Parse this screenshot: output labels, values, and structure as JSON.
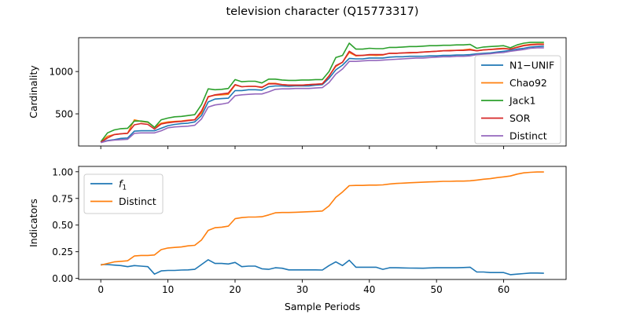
{
  "figure": {
    "suptitle": "television character (Q15773317)"
  },
  "chart_data": [
    {
      "type": "line",
      "title": "",
      "xlabel": "",
      "ylabel": "Cardinality",
      "xlim": [
        -3.3,
        69.3
      ],
      "ylim": [
        120,
        1400
      ],
      "x_ticks": [
        0,
        10,
        20,
        30,
        40,
        50,
        60
      ],
      "x_tick_labels_shown": false,
      "y_ticks": [
        500,
        1000
      ],
      "y_tick_labels": [
        "500",
        "1000"
      ],
      "grid": false,
      "legend": "right",
      "series": [
        {
          "name": "N1−UNIF",
          "color": "#1f77b4",
          "x": [
            0,
            1,
            2,
            3,
            4,
            5,
            6,
            7,
            8,
            9,
            10,
            11,
            12,
            13,
            14,
            15,
            16,
            17,
            18,
            19,
            20,
            21,
            22,
            23,
            24,
            25,
            26,
            27,
            28,
            29,
            30,
            31,
            32,
            33,
            34,
            35,
            36,
            37,
            38,
            39,
            40,
            41,
            42,
            43,
            44,
            45,
            46,
            47,
            48,
            49,
            50,
            51,
            52,
            53,
            54,
            55,
            56,
            57,
            58,
            59,
            60,
            61,
            62,
            63,
            64,
            65,
            66
          ],
          "values": [
            165,
            185,
            195,
            210,
            215,
            295,
            300,
            300,
            300,
            330,
            360,
            375,
            385,
            390,
            405,
            480,
            640,
            675,
            680,
            685,
            775,
            775,
            785,
            785,
            780,
            820,
            830,
            830,
            825,
            830,
            830,
            830,
            840,
            845,
            920,
            1020,
            1075,
            1155,
            1150,
            1150,
            1160,
            1160,
            1160,
            1170,
            1175,
            1175,
            1180,
            1180,
            1180,
            1185,
            1185,
            1190,
            1190,
            1195,
            1195,
            1200,
            1210,
            1215,
            1220,
            1230,
            1240,
            1250,
            1265,
            1275,
            1290,
            1295,
            1300
          ]
        },
        {
          "name": "Chao92",
          "color": "#ff7f0e",
          "x": [
            0,
            1,
            2,
            3,
            4,
            5,
            6,
            7,
            8,
            9,
            10,
            11,
            12,
            13,
            14,
            15,
            16,
            17,
            18,
            19,
            20,
            21,
            22,
            23,
            24,
            25,
            26,
            27,
            28,
            29,
            30,
            31,
            32,
            33,
            34,
            35,
            36,
            37,
            38,
            39,
            40,
            41,
            42,
            43,
            44,
            45,
            46,
            47,
            48,
            49,
            50,
            51,
            52,
            53,
            54,
            55,
            56,
            57,
            58,
            59,
            60,
            61,
            62,
            63,
            64,
            65,
            66
          ],
          "values": [
            165,
            235,
            255,
            265,
            270,
            430,
            410,
            400,
            340,
            390,
            405,
            410,
            415,
            425,
            430,
            510,
            705,
            720,
            725,
            730,
            840,
            820,
            825,
            825,
            810,
            860,
            860,
            845,
            840,
            840,
            840,
            845,
            850,
            855,
            950,
            1060,
            1110,
            1225,
            1185,
            1190,
            1195,
            1190,
            1195,
            1215,
            1215,
            1220,
            1220,
            1225,
            1230,
            1235,
            1240,
            1245,
            1250,
            1250,
            1255,
            1265,
            1245,
            1255,
            1260,
            1270,
            1275,
            1265,
            1290,
            1310,
            1320,
            1325,
            1325
          ]
        },
        {
          "name": "Jack1",
          "color": "#2ca02c",
          "x": [
            0,
            1,
            2,
            3,
            4,
            5,
            6,
            7,
            8,
            9,
            10,
            11,
            12,
            13,
            14,
            15,
            16,
            17,
            18,
            19,
            20,
            21,
            22,
            23,
            24,
            25,
            26,
            27,
            28,
            29,
            30,
            31,
            32,
            33,
            34,
            35,
            36,
            37,
            38,
            39,
            40,
            41,
            42,
            43,
            44,
            45,
            46,
            47,
            48,
            49,
            50,
            51,
            52,
            53,
            54,
            55,
            56,
            57,
            58,
            59,
            60,
            61,
            62,
            63,
            64,
            65,
            66
          ],
          "values": [
            170,
            275,
            310,
            325,
            330,
            415,
            415,
            405,
            340,
            430,
            450,
            465,
            470,
            480,
            490,
            610,
            795,
            785,
            790,
            800,
            905,
            880,
            885,
            885,
            865,
            910,
            910,
            900,
            895,
            895,
            900,
            900,
            905,
            905,
            1000,
            1165,
            1190,
            1335,
            1265,
            1265,
            1275,
            1270,
            1270,
            1285,
            1285,
            1290,
            1295,
            1295,
            1300,
            1305,
            1305,
            1310,
            1310,
            1315,
            1315,
            1320,
            1275,
            1290,
            1295,
            1300,
            1305,
            1280,
            1315,
            1335,
            1345,
            1345,
            1345
          ]
        },
        {
          "name": "SOR",
          "color": "#d62728",
          "x": [
            0,
            1,
            2,
            3,
            4,
            5,
            6,
            7,
            8,
            9,
            10,
            11,
            12,
            13,
            14,
            15,
            16,
            17,
            18,
            19,
            20,
            21,
            22,
            23,
            24,
            25,
            26,
            27,
            28,
            29,
            30,
            31,
            32,
            33,
            34,
            35,
            36,
            37,
            38,
            39,
            40,
            41,
            42,
            43,
            44,
            45,
            46,
            47,
            48,
            49,
            50,
            51,
            52,
            53,
            54,
            55,
            56,
            57,
            58,
            59,
            60,
            61,
            62,
            63,
            64,
            65,
            66
          ],
          "values": [
            165,
            215,
            255,
            265,
            270,
            370,
            385,
            375,
            320,
            380,
            395,
            405,
            410,
            420,
            430,
            535,
            700,
            725,
            735,
            745,
            845,
            820,
            825,
            825,
            815,
            855,
            855,
            845,
            840,
            840,
            840,
            845,
            850,
            855,
            945,
            1070,
            1110,
            1240,
            1190,
            1190,
            1200,
            1200,
            1200,
            1215,
            1215,
            1220,
            1225,
            1225,
            1230,
            1235,
            1240,
            1245,
            1245,
            1250,
            1250,
            1255,
            1245,
            1255,
            1260,
            1265,
            1270,
            1265,
            1285,
            1305,
            1315,
            1320,
            1320
          ]
        },
        {
          "name": "Distinct",
          "color": "#9467bd",
          "x": [
            0,
            1,
            2,
            3,
            4,
            5,
            6,
            7,
            8,
            9,
            10,
            11,
            12,
            13,
            14,
            15,
            16,
            17,
            18,
            19,
            20,
            21,
            22,
            23,
            24,
            25,
            26,
            27,
            28,
            29,
            30,
            31,
            32,
            33,
            34,
            35,
            36,
            37,
            38,
            39,
            40,
            41,
            42,
            43,
            44,
            45,
            46,
            47,
            48,
            49,
            50,
            51,
            52,
            53,
            54,
            55,
            56,
            57,
            58,
            59,
            60,
            61,
            62,
            63,
            64,
            65,
            66
          ],
          "values": [
            160,
            180,
            190,
            195,
            200,
            270,
            275,
            275,
            275,
            300,
            335,
            345,
            350,
            355,
            365,
            440,
            580,
            605,
            615,
            630,
            715,
            725,
            730,
            735,
            735,
            760,
            790,
            795,
            795,
            800,
            800,
            800,
            805,
            810,
            870,
            970,
            1030,
            1120,
            1120,
            1125,
            1130,
            1130,
            1135,
            1140,
            1145,
            1150,
            1155,
            1160,
            1160,
            1165,
            1170,
            1175,
            1175,
            1180,
            1180,
            1185,
            1200,
            1205,
            1210,
            1220,
            1225,
            1240,
            1250,
            1260,
            1275,
            1280,
            1280
          ]
        }
      ]
    },
    {
      "type": "line",
      "title": "",
      "xlabel": "Sample Periods",
      "ylabel": "Indicators",
      "xlim": [
        -3.3,
        69.3
      ],
      "ylim": [
        -0.01,
        1.05
      ],
      "x_ticks": [
        0,
        10,
        20,
        30,
        40,
        50,
        60
      ],
      "x_tick_labels": [
        "0",
        "10",
        "20",
        "30",
        "40",
        "50",
        "60"
      ],
      "y_ticks": [
        0.0,
        0.25,
        0.5,
        0.75,
        1.0
      ],
      "y_tick_labels": [
        "0.00",
        "0.25",
        "0.50",
        "0.75",
        "1.00"
      ],
      "grid": false,
      "legend": "top-left",
      "series": [
        {
          "name": "f1",
          "name_base": "f",
          "name_sub": "1",
          "color": "#1f77b4",
          "x": [
            0,
            1,
            2,
            3,
            4,
            5,
            6,
            7,
            8,
            9,
            10,
            11,
            12,
            13,
            14,
            15,
            16,
            17,
            18,
            19,
            20,
            21,
            22,
            23,
            24,
            25,
            26,
            27,
            28,
            29,
            30,
            31,
            32,
            33,
            34,
            35,
            36,
            37,
            38,
            39,
            40,
            41,
            42,
            43,
            44,
            45,
            46,
            47,
            48,
            49,
            50,
            51,
            52,
            53,
            54,
            55,
            56,
            57,
            58,
            59,
            60,
            61,
            62,
            63,
            64,
            65,
            66
          ],
          "values": [
            0.13,
            0.13,
            0.125,
            0.12,
            0.11,
            0.12,
            0.115,
            0.11,
            0.04,
            0.07,
            0.075,
            0.075,
            0.078,
            0.08,
            0.085,
            0.13,
            0.175,
            0.14,
            0.14,
            0.135,
            0.15,
            0.11,
            0.115,
            0.115,
            0.09,
            0.085,
            0.1,
            0.095,
            0.08,
            0.08,
            0.08,
            0.08,
            0.08,
            0.078,
            0.12,
            0.155,
            0.12,
            0.17,
            0.105,
            0.105,
            0.105,
            0.105,
            0.085,
            0.1,
            0.1,
            0.098,
            0.097,
            0.096,
            0.095,
            0.098,
            0.1,
            0.1,
            0.1,
            0.1,
            0.102,
            0.105,
            0.06,
            0.06,
            0.055,
            0.055,
            0.055,
            0.035,
            0.04,
            0.045,
            0.05,
            0.05,
            0.048
          ]
        },
        {
          "name": "Distinct",
          "color": "#ff7f0e",
          "x": [
            0,
            1,
            2,
            3,
            4,
            5,
            6,
            7,
            8,
            9,
            10,
            11,
            12,
            13,
            14,
            15,
            16,
            17,
            18,
            19,
            20,
            21,
            22,
            23,
            24,
            25,
            26,
            27,
            28,
            29,
            30,
            31,
            32,
            33,
            34,
            35,
            36,
            37,
            38,
            39,
            40,
            41,
            42,
            43,
            44,
            45,
            46,
            47,
            48,
            49,
            50,
            51,
            52,
            53,
            54,
            55,
            56,
            57,
            58,
            59,
            60,
            61,
            62,
            63,
            64,
            65,
            66
          ],
          "values": [
            0.125,
            0.14,
            0.155,
            0.16,
            0.165,
            0.21,
            0.215,
            0.215,
            0.22,
            0.27,
            0.285,
            0.29,
            0.295,
            0.305,
            0.31,
            0.36,
            0.45,
            0.475,
            0.48,
            0.49,
            0.56,
            0.57,
            0.575,
            0.575,
            0.578,
            0.595,
            0.615,
            0.618,
            0.618,
            0.62,
            0.622,
            0.625,
            0.628,
            0.632,
            0.68,
            0.76,
            0.81,
            0.87,
            0.872,
            0.872,
            0.875,
            0.875,
            0.877,
            0.885,
            0.89,
            0.893,
            0.897,
            0.9,
            0.902,
            0.905,
            0.907,
            0.91,
            0.91,
            0.912,
            0.912,
            0.915,
            0.922,
            0.93,
            0.935,
            0.945,
            0.952,
            0.96,
            0.978,
            0.99,
            0.995,
            0.998,
            0.998
          ]
        }
      ]
    }
  ]
}
